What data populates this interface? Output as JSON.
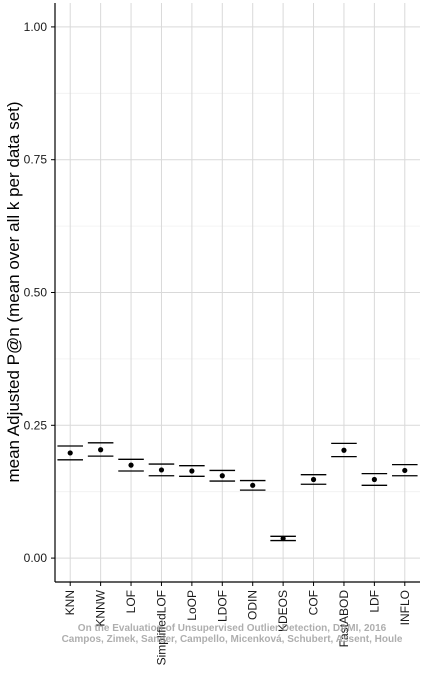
{
  "chart_data": {
    "type": "scatter",
    "title": "",
    "xlabel": "",
    "ylabel": "mean Adjusted P@n (mean over all k per data set)",
    "ylim": [
      -0.045,
      1.045
    ],
    "yticks": [
      0.0,
      0.25,
      0.5,
      0.75,
      1.0
    ],
    "ytick_labels": [
      "0.00",
      "0.25",
      "0.50",
      "0.75",
      "1.00"
    ],
    "grid": true,
    "categories": [
      "KNN",
      "KNNW",
      "LOF",
      "SimplifiedLOF",
      "LoOP",
      "LDOF",
      "ODIN",
      "KDEOS",
      "COF",
      "FastABOD",
      "LDF",
      "INFLO"
    ],
    "series": [
      {
        "means": [
          0.198,
          0.204,
          0.175,
          0.166,
          0.164,
          0.155,
          0.137,
          0.037,
          0.148,
          0.203,
          0.148,
          0.165
        ],
        "lower": [
          0.185,
          0.192,
          0.164,
          0.155,
          0.154,
          0.145,
          0.128,
          0.033,
          0.139,
          0.191,
          0.137,
          0.155
        ],
        "upper": [
          0.211,
          0.217,
          0.186,
          0.177,
          0.174,
          0.165,
          0.146,
          0.041,
          0.157,
          0.216,
          0.159,
          0.176
        ]
      }
    ],
    "colors": {
      "panel_background": "#ffffff",
      "grid_major": "#d9d9d9",
      "grid_minor": "#f0f0f0",
      "marks": "#000000",
      "watermark": "#9a9a9a"
    }
  },
  "watermark": {
    "line1": "On the Evaluation of Unsupervised Outlier Detection, DAMI, 2016",
    "line2": "Campos, Zimek, Sander, Campello, Micenková, Schubert, Assent, Houle"
  }
}
